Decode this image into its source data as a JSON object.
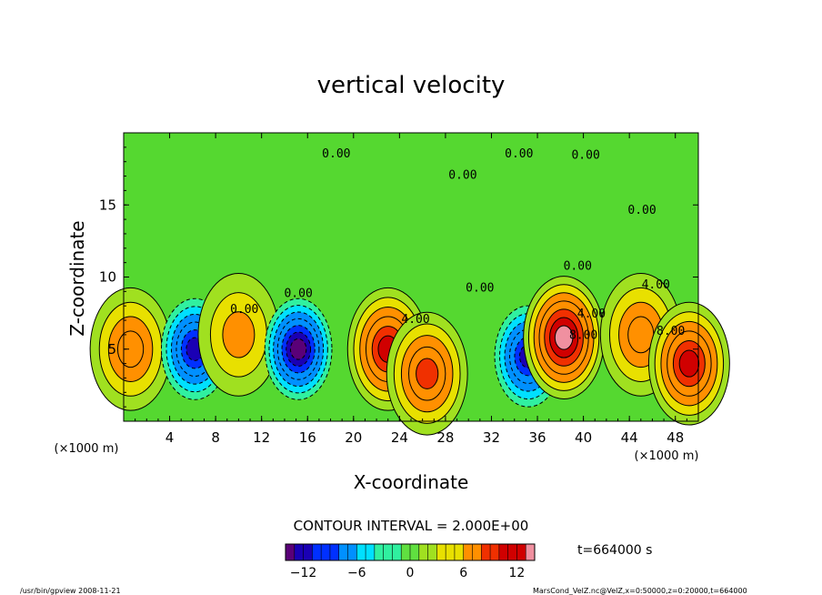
{
  "chart_data": {
    "type": "heatmap",
    "title": "vertical velocity",
    "xlabel": "X-coordinate",
    "ylabel": "Z-coordinate",
    "x_unit_left": "(×1000 m)",
    "x_unit_right": "(×1000 m)",
    "xlim": [
      0,
      50
    ],
    "ylim": [
      0,
      20
    ],
    "x_ticks": [
      4,
      8,
      12,
      16,
      20,
      24,
      28,
      32,
      36,
      40,
      44,
      48
    ],
    "y_ticks": [
      5,
      10,
      15
    ],
    "contour_interval": "CONTOUR INTERVAL = 2.000E+00",
    "time_label": "t=664000 s",
    "colorbar": {
      "range": [
        -14,
        14
      ],
      "ticks": [
        -12,
        -6,
        0,
        6,
        12
      ],
      "tick_labels": [
        "−12",
        "−6",
        "0",
        "6",
        "12"
      ],
      "colormap": [
        "#5a0078",
        "#1a00b4",
        "#0030ff",
        "#0090ff",
        "#00e0ff",
        "#30f0a0",
        "#60e040",
        "#a0e020",
        "#e8e000",
        "#ff9000",
        "#f03000",
        "#d00000",
        "#f090a0"
      ]
    },
    "contour_labels": [
      {
        "text": "0.00",
        "x": 18.5,
        "z": 18.3
      },
      {
        "text": "0.00",
        "x": 29.5,
        "z": 16.8
      },
      {
        "text": "0.00",
        "x": 34.4,
        "z": 18.3
      },
      {
        "text": "0.00",
        "x": 40.2,
        "z": 18.2
      },
      {
        "text": "0.00",
        "x": 45.1,
        "z": 14.4
      },
      {
        "text": "0.00",
        "x": 39.5,
        "z": 10.5
      },
      {
        "text": "0.00",
        "x": 31.0,
        "z": 9.0
      },
      {
        "text": "0.00",
        "x": 10.5,
        "z": 7.5
      },
      {
        "text": "0.00",
        "x": 15.2,
        "z": 8.6
      },
      {
        "text": "4.00",
        "x": 25.4,
        "z": 6.8
      },
      {
        "text": "4.00",
        "x": 46.3,
        "z": 9.2
      },
      {
        "text": "8.00",
        "x": 47.6,
        "z": 6.0
      },
      {
        "text": "8.00",
        "x": 40.0,
        "z": 5.7
      },
      {
        "text": "4.00",
        "x": 40.7,
        "z": 7.2
      }
    ],
    "features": [
      {
        "kind": "updraft",
        "x": 0.6,
        "z": 5.0,
        "peak": 8
      },
      {
        "kind": "downdraft",
        "x": 6.2,
        "z": 5.0,
        "peak": -12
      },
      {
        "kind": "updraft",
        "x": 10.0,
        "z": 6.0,
        "peak": 6
      },
      {
        "kind": "downdraft",
        "x": 15.2,
        "z": 5.0,
        "peak": -14
      },
      {
        "kind": "updraft",
        "x": 23.0,
        "z": 5.0,
        "peak": 12
      },
      {
        "kind": "updraft",
        "x": 26.4,
        "z": 3.3,
        "peak": 10
      },
      {
        "kind": "downdraft",
        "x": 35.2,
        "z": 4.5,
        "peak": -12
      },
      {
        "kind": "updraft",
        "x": 38.3,
        "z": 5.8,
        "peak": 14
      },
      {
        "kind": "updraft",
        "x": 45.0,
        "z": 6.0,
        "peak": 8
      },
      {
        "kind": "updraft",
        "x": 49.2,
        "z": 4.0,
        "peak": 13
      }
    ]
  },
  "footer": {
    "program": "/usr/bin/gpview  2008-11-21",
    "source": "MarsCond_VelZ.nc@VelZ,x=0:50000,z=0:20000,t=664000"
  }
}
